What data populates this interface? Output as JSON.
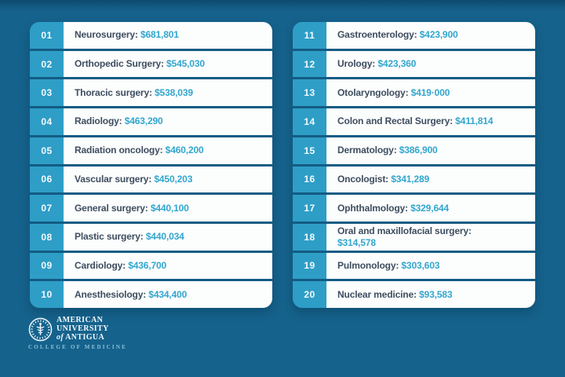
{
  "theme": {
    "background": "#15628C",
    "accent": "#2E9EC7",
    "card": "#FCFDFD",
    "divider": "#135C84",
    "specialty_text": "#3D4D5F",
    "salary_text": "#31A6CE",
    "rank_text": "#F4FAFD",
    "logo_subtext": "#8FC2D9"
  },
  "list": {
    "columns": [
      {
        "items": [
          {
            "rank": "01",
            "name": "Neurosurgery:",
            "salary": "$681,801"
          },
          {
            "rank": "02",
            "name": "Orthopedic Surgery:",
            "salary": "$545,030"
          },
          {
            "rank": "03",
            "name": "Thoracic surgery:",
            "salary": "$538,039"
          },
          {
            "rank": "04",
            "name": "Radiology:",
            "salary": "$463,290"
          },
          {
            "rank": "05",
            "name": "Radiation oncology:",
            "salary": "$460,200"
          },
          {
            "rank": "06",
            "name": "Vascular surgery:",
            "salary": "$450,203"
          },
          {
            "rank": "07",
            "name": "General surgery:",
            "salary": "$440,100"
          },
          {
            "rank": "08",
            "name": "Plastic surgery:",
            "salary": "$440,034"
          },
          {
            "rank": "09",
            "name": "Cardiology:",
            "salary": "$436,700"
          },
          {
            "rank": "10",
            "name": "Anesthesiology:",
            "salary": "$434,400"
          }
        ]
      },
      {
        "items": [
          {
            "rank": "11",
            "name": "Gastroenterology:",
            "salary": "$423,900"
          },
          {
            "rank": "12",
            "name": "Urology:",
            "salary": "$423,360"
          },
          {
            "rank": "13",
            "name": "Otolaryngology:",
            "salary": "$419·000"
          },
          {
            "rank": "14",
            "name": "Colon and Rectal Surgery:",
            "salary": "$411,814"
          },
          {
            "rank": "15",
            "name": "Dermatology:",
            "salary": "$386,900"
          },
          {
            "rank": "16",
            "name": "Oncologist:",
            "salary": "$341,289"
          },
          {
            "rank": "17",
            "name": "Ophthalmology:",
            "salary": "$329,644"
          },
          {
            "rank": "18",
            "name": "Oral and maxillofacial surgery:",
            "salary": "$314,578"
          },
          {
            "rank": "19",
            "name": "Pulmonology:",
            "salary": "$303,603"
          },
          {
            "rank": "20",
            "name": "Nuclear medicine:",
            "salary": "$93,583"
          }
        ]
      }
    ]
  },
  "logo": {
    "line1": "AMERICAN",
    "line2": "UNIVERSITY",
    "line3_prefix": "of",
    "line3": "ANTIGUA",
    "subtitle": "COLLEGE OF MEDICINE"
  },
  "chart_data": {
    "type": "table",
    "ranks": [
      1,
      2,
      3,
      4,
      5,
      6,
      7,
      8,
      9,
      10,
      11,
      12,
      13,
      14,
      15,
      16,
      17,
      18,
      19,
      20
    ],
    "categories": [
      "Neurosurgery",
      "Orthopedic Surgery",
      "Thoracic surgery",
      "Radiology",
      "Radiation oncology",
      "Vascular surgery",
      "General surgery",
      "Plastic surgery",
      "Cardiology",
      "Anesthesiology",
      "Gastroenterology",
      "Urology",
      "Otolaryngology",
      "Colon and Rectal Surgery",
      "Dermatology",
      "Oncologist",
      "Ophthalmology",
      "Oral and maxillofacial surgery",
      "Pulmonology",
      "Nuclear medicine"
    ],
    "values": [
      681801,
      545030,
      538039,
      463290,
      460200,
      450203,
      440100,
      440034,
      436700,
      434400,
      423900,
      423360,
      419000,
      411814,
      386900,
      341289,
      329644,
      314578,
      303603,
      93583
    ],
    "value_prefix": "$",
    "layout": "two-column ranked list, ranks 01-10 left, 11-20 right"
  }
}
